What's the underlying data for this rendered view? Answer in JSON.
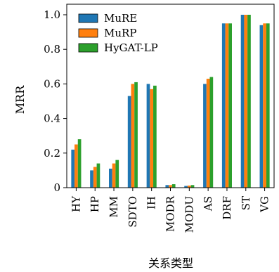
{
  "chart_data": {
    "type": "bar",
    "categories": [
      "HY",
      "HP",
      "MM",
      "SDTO",
      "IH",
      "MODR",
      "MODU",
      "AS",
      "DRF",
      "ST",
      "VG"
    ],
    "series": [
      {
        "name": "MuRE",
        "color": "#1f77b4",
        "values": [
          0.22,
          0.1,
          0.11,
          0.53,
          0.6,
          0.015,
          0.01,
          0.6,
          0.95,
          1.0,
          0.94
        ]
      },
      {
        "name": "MuRP",
        "color": "#ff7f0e",
        "values": [
          0.25,
          0.12,
          0.14,
          0.6,
          0.57,
          0.015,
          0.012,
          0.63,
          0.95,
          1.0,
          0.95
        ]
      },
      {
        "name": "HyGAT-LP",
        "color": "#2ca02c",
        "values": [
          0.28,
          0.14,
          0.16,
          0.61,
          0.59,
          0.02,
          0.015,
          0.64,
          0.95,
          1.0,
          0.95
        ]
      }
    ],
    "xlabel": "关系类型",
    "ylabel": "MRR",
    "ylim": [
      0,
      1.0
    ],
    "yticks": [
      "0",
      "0.2",
      "0.4",
      "0.6",
      "0.8",
      "1.0"
    ],
    "grid": false,
    "legend_position": "top-left"
  }
}
